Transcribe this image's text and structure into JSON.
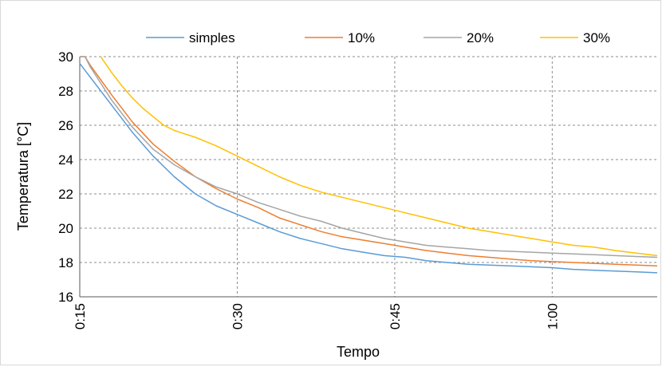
{
  "chart_data": {
    "type": "line",
    "title": "",
    "xlabel": "Tempo",
    "ylabel": "Temperatura [°C]",
    "x_unit": "minutes (h:mm)",
    "xlim": [
      15,
      70
    ],
    "ylim": [
      16,
      30
    ],
    "xticks": [
      15,
      30,
      45,
      60
    ],
    "xtick_labels": [
      "0:15",
      "0:30",
      "0:45",
      "1:00"
    ],
    "yticks": [
      16,
      18,
      20,
      22,
      24,
      26,
      28,
      30
    ],
    "ytick_labels": [
      "16",
      "18",
      "20",
      "22",
      "24",
      "26",
      "28",
      "30"
    ],
    "grid": "dashed, both axes",
    "legend_position": "top",
    "series": [
      {
        "name": "simples",
        "color": "#5b9bd5",
        "x": [
          15,
          16,
          18,
          20,
          22,
          24,
          26,
          28,
          30,
          32,
          34,
          36,
          38,
          40,
          42,
          44,
          46,
          48,
          50,
          52,
          54,
          56,
          58,
          60,
          62,
          64,
          66,
          68,
          70
        ],
        "y": [
          29.6,
          28.8,
          27.2,
          25.6,
          24.2,
          23.0,
          22.0,
          21.3,
          20.8,
          20.3,
          19.8,
          19.4,
          19.1,
          18.8,
          18.6,
          18.4,
          18.3,
          18.1,
          18.0,
          17.9,
          17.85,
          17.8,
          17.75,
          17.7,
          17.6,
          17.55,
          17.5,
          17.45,
          17.4
        ]
      },
      {
        "name": "10%",
        "color": "#ed7d31",
        "x": [
          15,
          15.5,
          16,
          18,
          20,
          22,
          24,
          26,
          28,
          30,
          32,
          34,
          36,
          38,
          40,
          42,
          44,
          46,
          48,
          50,
          52,
          54,
          56,
          58,
          60,
          62,
          64,
          66,
          68,
          70
        ],
        "y": [
          30,
          30,
          29.5,
          27.8,
          26.2,
          24.9,
          23.9,
          23.0,
          22.3,
          21.7,
          21.2,
          20.6,
          20.2,
          19.8,
          19.5,
          19.3,
          19.1,
          18.9,
          18.7,
          18.55,
          18.4,
          18.3,
          18.2,
          18.1,
          18.05,
          18.0,
          17.95,
          17.9,
          17.85,
          17.8
        ]
      },
      {
        "name": "20%",
        "color": "#a5a5a5",
        "x": [
          15,
          15.5,
          16,
          18,
          20,
          22,
          24,
          26,
          28,
          30,
          32,
          34,
          36,
          38,
          40,
          42,
          44,
          46,
          48,
          50,
          52,
          54,
          56,
          58,
          60,
          62,
          64,
          66,
          68,
          70
        ],
        "y": [
          30,
          30,
          29.4,
          27.5,
          25.9,
          24.6,
          23.7,
          23.0,
          22.4,
          22.0,
          21.5,
          21.1,
          20.7,
          20.4,
          20.0,
          19.7,
          19.4,
          19.2,
          19.0,
          18.9,
          18.8,
          18.7,
          18.65,
          18.6,
          18.55,
          18.5,
          18.45,
          18.4,
          18.35,
          18.3
        ]
      },
      {
        "name": "30%",
        "color": "#ffc000",
        "x": [
          17,
          18,
          19,
          20,
          21,
          22,
          23,
          24,
          25,
          26,
          28,
          30,
          32,
          34,
          36,
          38,
          40,
          42,
          44,
          46,
          48,
          50,
          52,
          54,
          56,
          58,
          60,
          62,
          64,
          66,
          68,
          70
        ],
        "y": [
          30,
          29.1,
          28.3,
          27.6,
          27.0,
          26.5,
          26.0,
          25.7,
          25.5,
          25.3,
          24.8,
          24.2,
          23.6,
          23.0,
          22.5,
          22.1,
          21.8,
          21.5,
          21.2,
          20.9,
          20.6,
          20.3,
          20.0,
          19.8,
          19.6,
          19.4,
          19.2,
          19.0,
          18.9,
          18.7,
          18.55,
          18.4
        ]
      }
    ]
  }
}
